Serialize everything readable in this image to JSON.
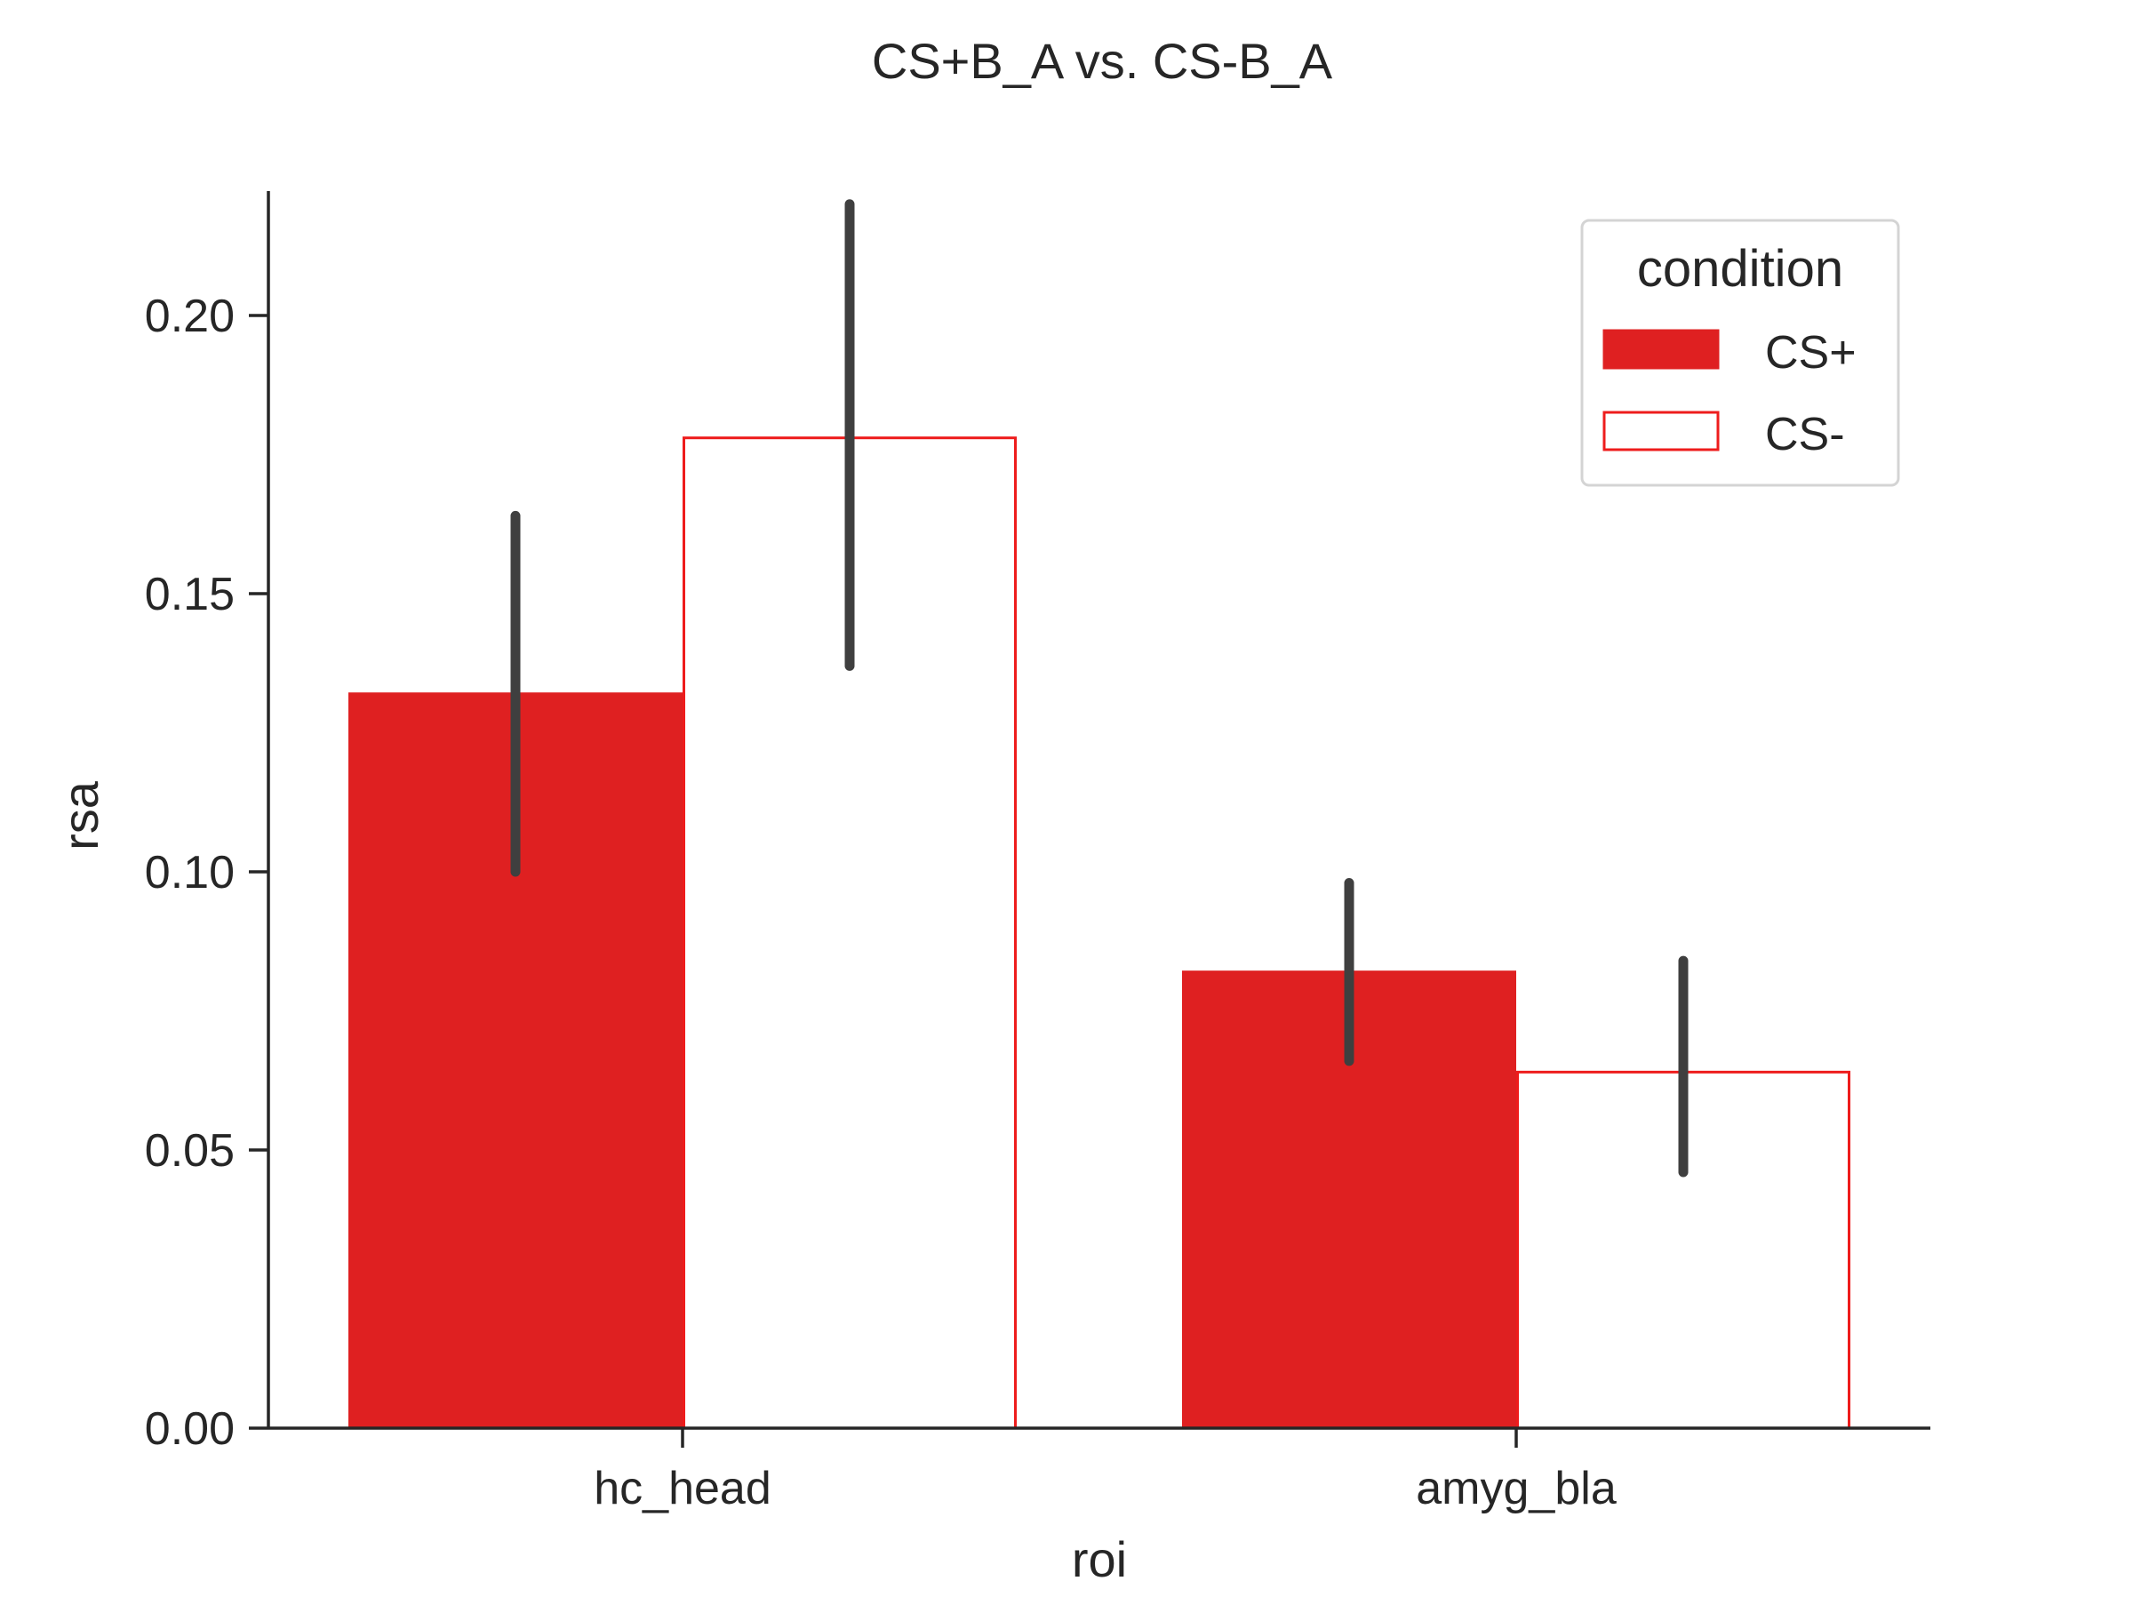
{
  "chart_data": {
    "type": "bar",
    "title": "CS+B_A vs. CS-B_A",
    "xlabel": "roi",
    "ylabel": "rsa",
    "categories": [
      "hc_head",
      "amyg_bla"
    ],
    "ylim": [
      0,
      0.23
    ],
    "yticks": [
      "0.00",
      "0.05",
      "0.10",
      "0.15",
      "0.20"
    ],
    "legend": {
      "title": "condition",
      "placement": "top-right"
    },
    "series": [
      {
        "name": "CS+",
        "values": [
          0.132,
          0.082
        ],
        "ci_low": [
          0.1,
          0.066
        ],
        "ci_high": [
          0.164,
          0.098
        ],
        "fill": "#df2021",
        "edge": "#df2021"
      },
      {
        "name": "CS-",
        "values": [
          0.178,
          0.064
        ],
        "ci_low": [
          0.137,
          0.046
        ],
        "ci_high": [
          0.22,
          0.084
        ],
        "fill": "#ffffff",
        "edge": "#ee1c1c"
      }
    ],
    "errorbar_color": "#3f3f3f",
    "grid": false
  }
}
